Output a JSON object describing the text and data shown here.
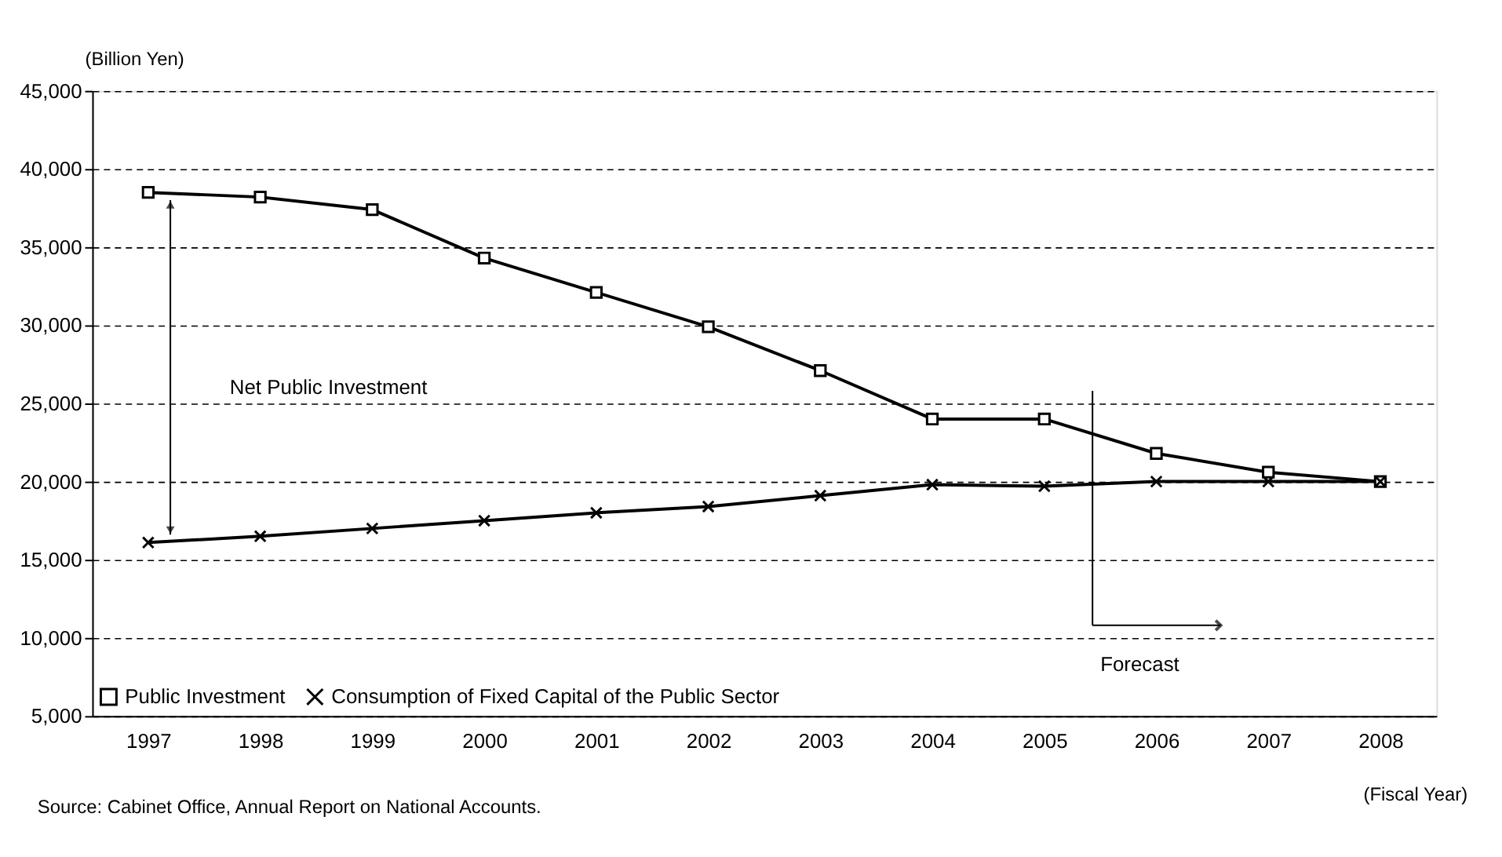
{
  "chart_data": {
    "type": "line",
    "ylabel": "(Billion Yen)",
    "xlabel": "(Fiscal Year)",
    "categories": [
      "1997",
      "1998",
      "1999",
      "2000",
      "2001",
      "2002",
      "2003",
      "2004",
      "2005",
      "2006",
      "2007",
      "2008"
    ],
    "series": [
      {
        "name": "Public Investment",
        "color": "#000000",
        "marker": "square",
        "values": [
          38500,
          38200,
          37400,
          34300,
          32100,
          29900,
          27100,
          24000,
          24000,
          21800,
          20600,
          20000
        ]
      },
      {
        "name": "Consumption of Fixed Capital of the Public Sector",
        "color": "#000000",
        "marker": "cross",
        "values": [
          16100,
          16500,
          17000,
          17500,
          18000,
          18400,
          19100,
          19800,
          19700,
          20000,
          20000,
          20000
        ]
      }
    ],
    "ylim": [
      5000,
      45000
    ],
    "yticks": [
      {
        "value": 5000,
        "label": "5,000"
      },
      {
        "value": 10000,
        "label": "10,000"
      },
      {
        "value": 15000,
        "label": "15,000"
      },
      {
        "value": 20000,
        "label": "20,000"
      },
      {
        "value": 25000,
        "label": "25,000"
      },
      {
        "value": 30000,
        "label": "30,000"
      },
      {
        "value": 35000,
        "label": "35,000"
      },
      {
        "value": 40000,
        "label": "40,000"
      },
      {
        "value": 45000,
        "label": "45,000"
      }
    ],
    "grid": "y",
    "legend": "bottom left",
    "line_style": "solid",
    "annotations": [
      "Net Public Investment",
      "Forecast",
      "Source: Cabinet Office, Annual Report on National Accounts."
    ]
  }
}
